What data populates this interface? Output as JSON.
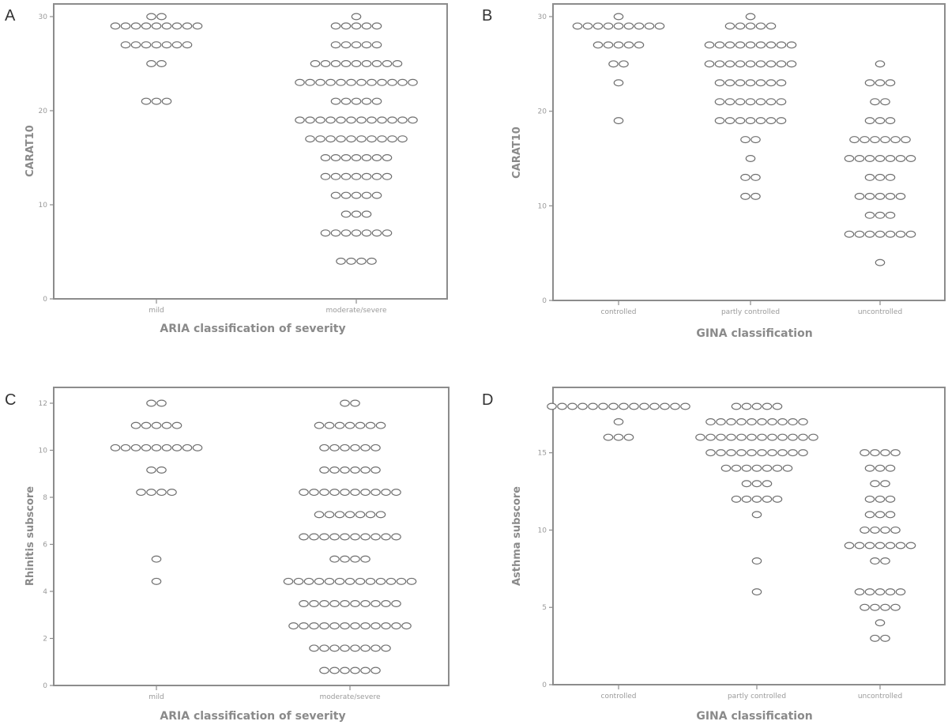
{
  "chart_data": [
    {
      "panel": "A",
      "type": "scatter",
      "xlabel": "ARIA classification of severity",
      "ylabel": "CARAT10",
      "categories": [
        "mild",
        "moderate/severe"
      ],
      "yticks": [
        "0",
        "10",
        "20",
        "30"
      ],
      "ylim": [
        0,
        30
      ],
      "series": [
        {
          "values": [
            {
              "y": 30,
              "n": 2
            },
            {
              "y": 29,
              "n": 9
            },
            {
              "y": 27,
              "n": 7
            },
            {
              "y": 25,
              "n": 2
            },
            {
              "y": 21,
              "n": 3
            }
          ]
        },
        {
          "values": [
            {
              "y": 30,
              "n": 1
            },
            {
              "y": 29,
              "n": 5
            },
            {
              "y": 27,
              "n": 5
            },
            {
              "y": 25,
              "n": 9
            },
            {
              "y": 23,
              "n": 12
            },
            {
              "y": 21,
              "n": 5
            },
            {
              "y": 19,
              "n": 12
            },
            {
              "y": 17,
              "n": 10
            },
            {
              "y": 15,
              "n": 7
            },
            {
              "y": 13,
              "n": 7
            },
            {
              "y": 11,
              "n": 5
            },
            {
              "y": 9,
              "n": 3
            },
            {
              "y": 7,
              "n": 7
            },
            {
              "y": 4,
              "n": 4
            }
          ]
        }
      ]
    },
    {
      "panel": "B",
      "type": "scatter",
      "xlabel": "GINA classification",
      "ylabel": "CARAT10",
      "categories": [
        "controlled",
        "partly controlled",
        "uncontrolled"
      ],
      "yticks": [
        "0",
        "10",
        "20",
        "30"
      ],
      "ylim": [
        0,
        30
      ],
      "series": [
        {
          "values": [
            {
              "y": 30,
              "n": 1
            },
            {
              "y": 29,
              "n": 9
            },
            {
              "y": 27,
              "n": 5
            },
            {
              "y": 25,
              "n": 2
            },
            {
              "y": 23,
              "n": 1
            },
            {
              "y": 19,
              "n": 1
            }
          ]
        },
        {
          "values": [
            {
              "y": 30,
              "n": 1
            },
            {
              "y": 29,
              "n": 5
            },
            {
              "y": 27,
              "n": 9
            },
            {
              "y": 25,
              "n": 9
            },
            {
              "y": 23,
              "n": 7
            },
            {
              "y": 21,
              "n": 7
            },
            {
              "y": 19,
              "n": 7
            },
            {
              "y": 17,
              "n": 2
            },
            {
              "y": 15,
              "n": 1
            },
            {
              "y": 13,
              "n": 2
            },
            {
              "y": 11,
              "n": 2
            }
          ]
        },
        {
          "values": [
            {
              "y": 25,
              "n": 1
            },
            {
              "y": 23,
              "n": 3
            },
            {
              "y": 21,
              "n": 2
            },
            {
              "y": 19,
              "n": 3
            },
            {
              "y": 17,
              "n": 6
            },
            {
              "y": 15,
              "n": 7
            },
            {
              "y": 13,
              "n": 3
            },
            {
              "y": 11,
              "n": 5
            },
            {
              "y": 9,
              "n": 3
            },
            {
              "y": 7,
              "n": 7
            },
            {
              "y": 4,
              "n": 1
            }
          ]
        }
      ]
    },
    {
      "panel": "C",
      "type": "scatter",
      "xlabel": "ARIA classification of severity",
      "ylabel": "Rhinitis subscore",
      "categories": [
        "mild",
        "moderate/severe"
      ],
      "yticks": [
        "0",
        "2",
        "4",
        "6",
        "8",
        "10",
        "12"
      ],
      "ylim": [
        0,
        12
      ],
      "series": [
        {
          "values": [
            {
              "y": 12,
              "n": 2
            },
            {
              "y": 11,
              "n": 5
            },
            {
              "y": 10,
              "n": 9
            },
            {
              "y": 9,
              "n": 2
            },
            {
              "y": 8,
              "n": 4
            },
            {
              "y": 5,
              "n": 1
            },
            {
              "y": 4,
              "n": 1
            }
          ]
        },
        {
          "values": [
            {
              "y": 12,
              "n": 2
            },
            {
              "y": 11,
              "n": 7
            },
            {
              "y": 10,
              "n": 6
            },
            {
              "y": 9,
              "n": 6
            },
            {
              "y": 8,
              "n": 10
            },
            {
              "y": 7,
              "n": 7
            },
            {
              "y": 6,
              "n": 10
            },
            {
              "y": 5,
              "n": 4
            },
            {
              "y": 4,
              "n": 13
            },
            {
              "y": 3,
              "n": 10
            },
            {
              "y": 2,
              "n": 12
            },
            {
              "y": 1,
              "n": 8
            },
            {
              "y": 0,
              "n": 6
            }
          ]
        }
      ]
    },
    {
      "panel": "D",
      "type": "scatter",
      "xlabel": "GINA classification",
      "ylabel": "Asthma subscore",
      "categories": [
        "controlled",
        "partly controlled",
        "uncontrolled"
      ],
      "yticks": [
        "0",
        "5",
        "10",
        "15"
      ],
      "ylim": [
        0,
        18
      ],
      "series": [
        {
          "values": [
            {
              "y": 18,
              "n": 14
            },
            {
              "y": 17,
              "n": 1
            },
            {
              "y": 16,
              "n": 3
            }
          ]
        },
        {
          "values": [
            {
              "y": 18,
              "n": 5
            },
            {
              "y": 17,
              "n": 10
            },
            {
              "y": 16,
              "n": 12
            },
            {
              "y": 15,
              "n": 10
            },
            {
              "y": 14,
              "n": 7
            },
            {
              "y": 13,
              "n": 3
            },
            {
              "y": 12,
              "n": 5
            },
            {
              "y": 11,
              "n": 1
            },
            {
              "y": 8,
              "n": 1
            },
            {
              "y": 6,
              "n": 1
            }
          ]
        },
        {
          "values": [
            {
              "y": 15,
              "n": 4
            },
            {
              "y": 14,
              "n": 3
            },
            {
              "y": 13,
              "n": 2
            },
            {
              "y": 12,
              "n": 3
            },
            {
              "y": 11,
              "n": 3
            },
            {
              "y": 10,
              "n": 4
            },
            {
              "y": 9,
              "n": 7
            },
            {
              "y": 8,
              "n": 2
            },
            {
              "y": 6,
              "n": 5
            },
            {
              "y": 5,
              "n": 4
            },
            {
              "y": 4,
              "n": 1
            },
            {
              "y": 3,
              "n": 2
            }
          ]
        }
      ]
    }
  ]
}
